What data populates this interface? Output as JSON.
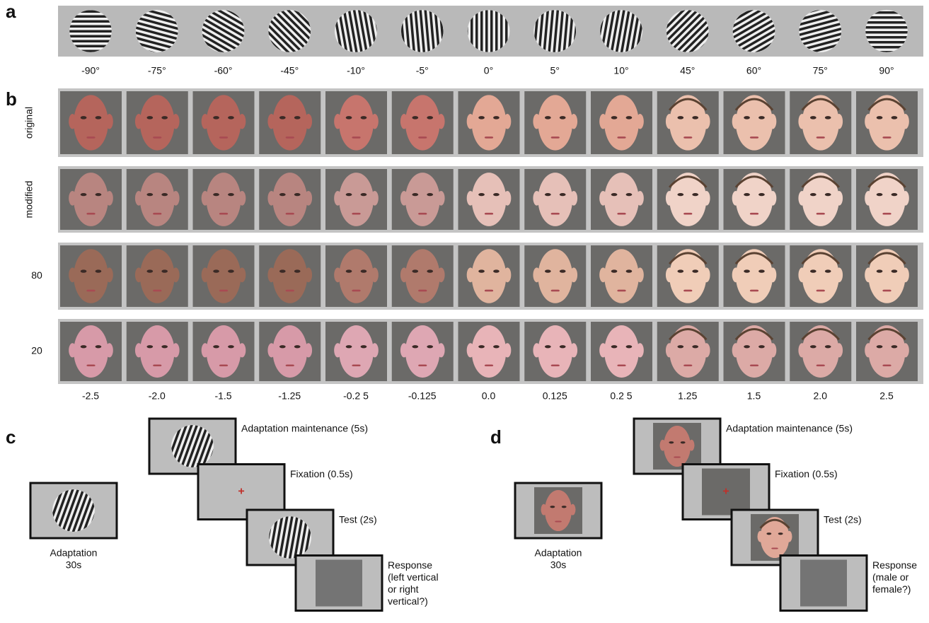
{
  "panels": {
    "a": {
      "label": "a",
      "angles": [
        "-90°",
        "-75°",
        "-60°",
        "-45°",
        "-10°",
        "-5°",
        "0°",
        "5°",
        "10°",
        "45°",
        "60°",
        "75°",
        "90°"
      ]
    },
    "b": {
      "label": "b",
      "row_labels": [
        "original",
        "modified",
        "80",
        "20"
      ],
      "levels": [
        "-2.5",
        "-2.0",
        "-1.5",
        "-1.25",
        "-0.2 5",
        "-0.125",
        "0.0",
        "0.125",
        "0.2 5",
        "1.25",
        "1.5",
        "2.0",
        "2.5"
      ]
    },
    "c": {
      "label": "c",
      "adaptation": [
        "Adaptation",
        "30s"
      ],
      "steps": [
        [
          "Adaptation maintenance (5s)"
        ],
        [
          "Fixation (0.5s)"
        ],
        [
          "Test (2s)"
        ],
        [
          "Response",
          "(left vertical",
          "or right",
          "vertical?)"
        ]
      ]
    },
    "d": {
      "label": "d",
      "adaptation": [
        "Adaptation",
        "30s"
      ],
      "steps": [
        [
          "Adaptation maintenance (5s)"
        ],
        [
          "Fixation (0.5s)"
        ],
        [
          "Test (2s)"
        ],
        [
          "Response",
          "(male or",
          "female?)"
        ]
      ]
    }
  }
}
